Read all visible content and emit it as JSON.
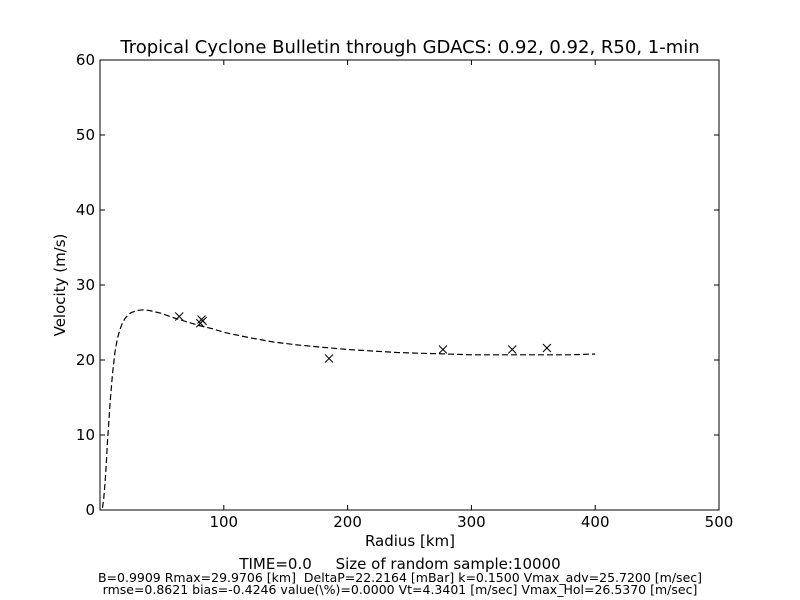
{
  "chart_data": {
    "type": "scatter",
    "title": "Tropical Cyclone Bulletin through GDACS: 0.92, 0.92, R50, 1-min",
    "xlabel": "Radius [km]",
    "ylabel": "Velocity (m/s)",
    "xlim": [
      0,
      500
    ],
    "ylim": [
      0,
      60
    ],
    "x_ticks": [
      100,
      200,
      300,
      400,
      500
    ],
    "x_tick_labels": [
      "100",
      "200",
      "300",
      "400",
      "500"
    ],
    "y_ticks": [
      0,
      10,
      20,
      30,
      40,
      50,
      60
    ],
    "y_tick_labels": [
      "0",
      "10",
      "20",
      "30",
      "40",
      "50",
      "60"
    ],
    "grid": false,
    "series": [
      {
        "style": "dashed-line",
        "color": "#000000",
        "x": [
          2,
          3,
          4,
          5,
          6,
          7,
          8,
          10,
          12,
          14,
          16,
          18,
          20,
          22,
          25,
          28,
          30,
          35,
          40,
          45,
          50,
          55,
          60,
          70,
          80,
          90,
          100,
          120,
          140,
          160,
          180,
          200,
          220,
          240,
          260,
          280,
          300,
          320,
          340,
          360,
          380,
          400
        ],
        "values": [
          0.3,
          1.5,
          3.5,
          6.0,
          9.0,
          11.5,
          14.0,
          18.0,
          21.0,
          22.8,
          24.0,
          24.9,
          25.5,
          25.9,
          26.3,
          26.5,
          26.6,
          26.7,
          26.6,
          26.4,
          26.2,
          25.9,
          25.6,
          25.1,
          24.6,
          24.2,
          23.7,
          23.0,
          22.4,
          22.0,
          21.7,
          21.4,
          21.2,
          21.0,
          20.9,
          20.8,
          20.7,
          20.7,
          20.7,
          20.7,
          20.7,
          20.8
        ]
      },
      {
        "style": "x-markers",
        "color": "#000000",
        "x": [
          64,
          81,
          82,
          83,
          185,
          277,
          333,
          361
        ],
        "values": [
          25.8,
          24.9,
          25.4,
          25.2,
          20.2,
          21.4,
          21.4,
          21.6
        ]
      }
    ]
  },
  "footer": {
    "line1": "TIME=0.0     Size of random sample:10000",
    "line2": "B=0.9909 Rmax=29.9706 [km]  DeltaP=22.2164 [mBar] k=0.1500 Vmax_adv=25.7200 [m/sec]",
    "line3": "rmse=0.8621 bias=-0.4246 value(\\%)=0.0000 Vt=4.3401 [m/sec] Vmax_Hol=26.5370 [m/sec]"
  }
}
